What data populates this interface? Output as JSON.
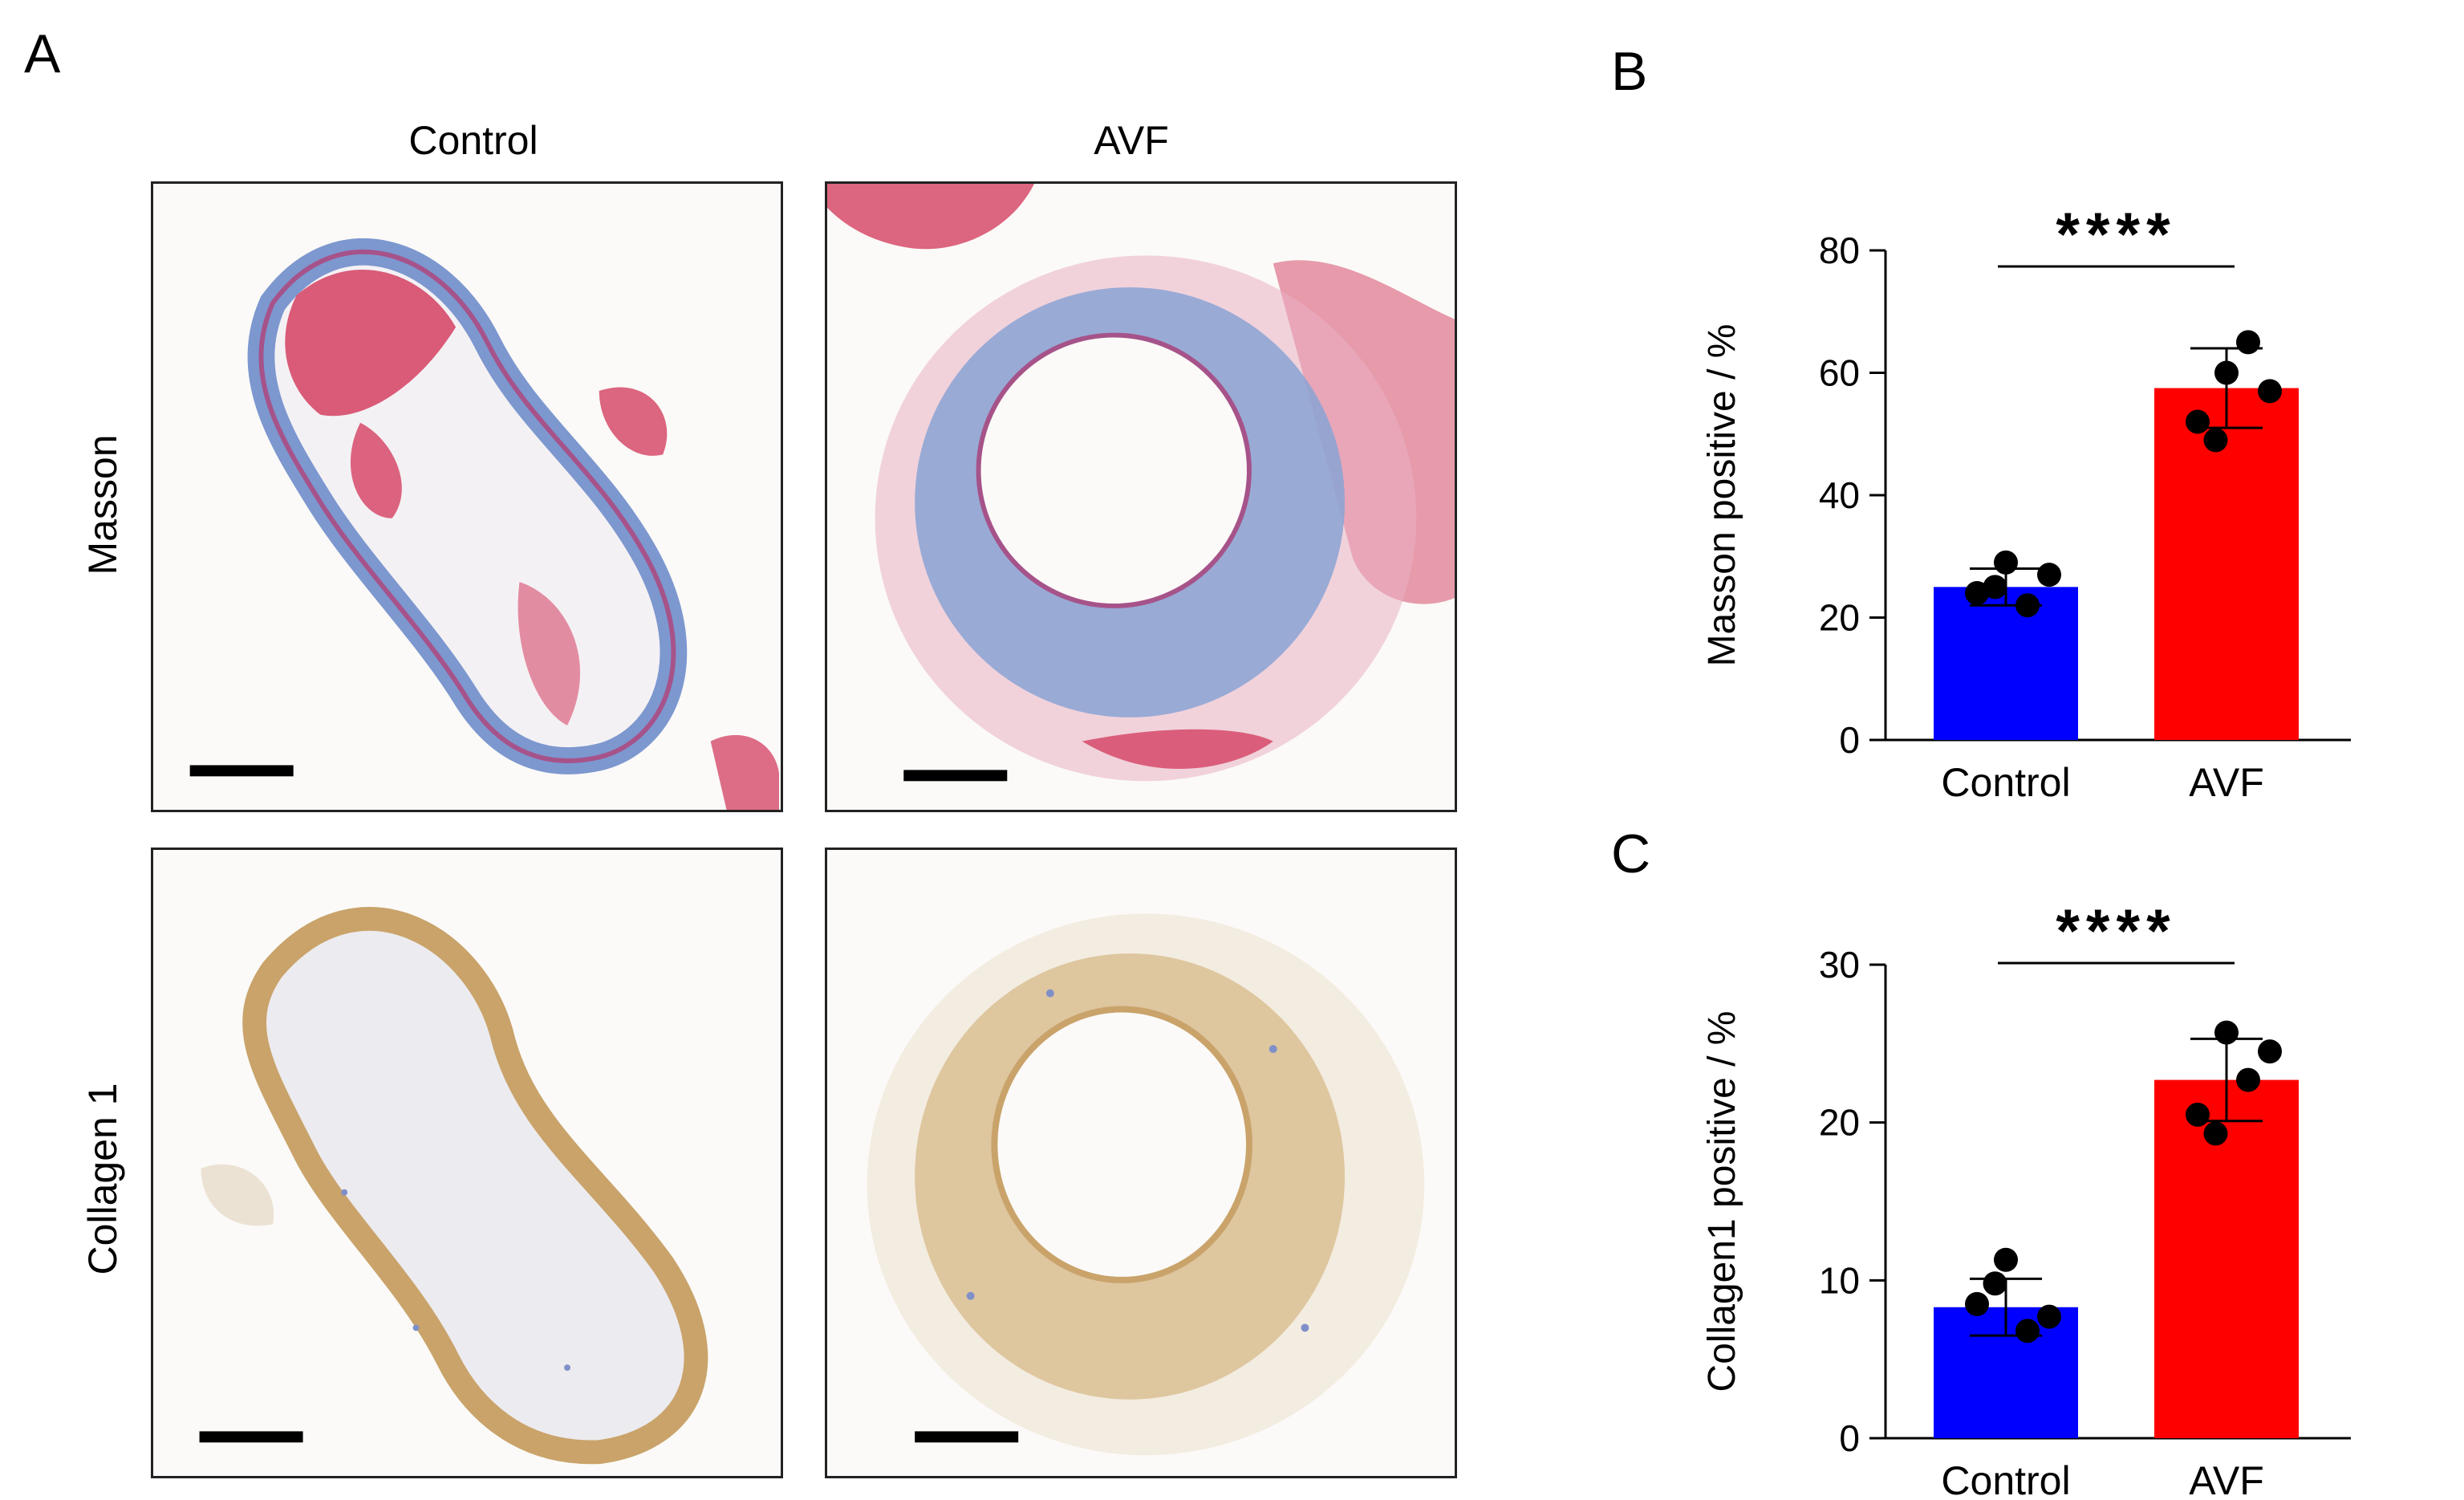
{
  "panels": {
    "a_label": "A",
    "b_label": "B",
    "c_label": "C"
  },
  "micrographs": {
    "columns": [
      "Control",
      "AVF"
    ],
    "rows": [
      "Masson",
      "Collagen 1"
    ],
    "stain_colors": {
      "masson_red": "#d64a6a",
      "masson_blue": "#6f8fcc",
      "collagen_brown": "#c9a36a",
      "collagen_blue": "#7f8fc8"
    }
  },
  "chart_data": [
    {
      "type": "bar",
      "categories": [
        "Control",
        "AVF"
      ],
      "values": [
        25,
        57.5
      ],
      "error": [
        3,
        6.5
      ],
      "points": [
        [
          24,
          29,
          22,
          27,
          25
        ],
        [
          52,
          60,
          65,
          57,
          49
        ]
      ],
      "colors": [
        "#0000ff",
        "#ff0000"
      ],
      "ylabel": "Masson positive /  %",
      "ylim": [
        0,
        80
      ],
      "yticks": [
        0,
        20,
        40,
        60,
        80
      ],
      "significance": "****",
      "grid": false
    },
    {
      "type": "bar",
      "categories": [
        "Control",
        "AVF"
      ],
      "values": [
        8.3,
        22.7
      ],
      "error": [
        1.8,
        2.6
      ],
      "points": [
        [
          8.5,
          11.3,
          6.8,
          7.7,
          9.8
        ],
        [
          20.5,
          25.7,
          22.7,
          24.5,
          19.3
        ]
      ],
      "colors": [
        "#0000ff",
        "#ff0000"
      ],
      "ylabel": "Collagen1 positive /  %",
      "ylim": [
        0,
        30
      ],
      "yticks": [
        0,
        10,
        20,
        30
      ],
      "significance": "****",
      "grid": false
    }
  ]
}
